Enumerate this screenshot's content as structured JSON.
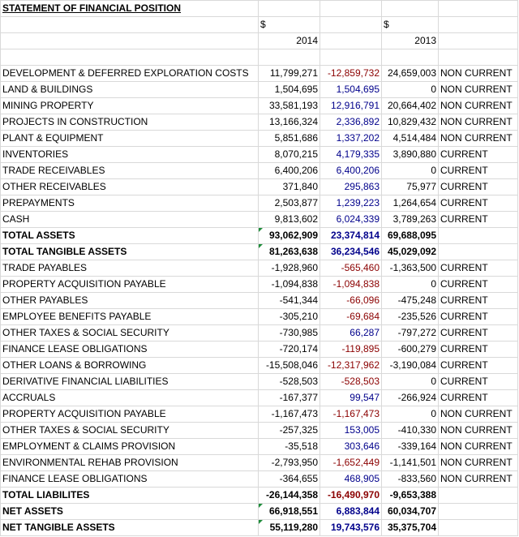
{
  "title": "STATEMENT OF FINANCIAL POSITION",
  "currency_2014": "$",
  "currency_2013": "$",
  "year_2014": "2014",
  "year_2013": "2013",
  "rows": [
    {
      "label": "DEVELOPMENT & DEFERRED EXPLORATION COSTS",
      "v2014": "11,799,271",
      "diff": "-12,859,732",
      "v2013": "24,659,003",
      "cls": "NON CURRENT",
      "diff_tone": "neg",
      "bold": false,
      "flag": false
    },
    {
      "label": "LAND & BUILDINGS",
      "v2014": "1,504,695",
      "diff": "1,504,695",
      "v2013": "0",
      "cls": "NON CURRENT",
      "diff_tone": "pos",
      "bold": false,
      "flag": false
    },
    {
      "label": "MINING PROPERTY",
      "v2014": "33,581,193",
      "diff": "12,916,791",
      "v2013": "20,664,402",
      "cls": "NON CURRENT",
      "diff_tone": "pos",
      "bold": false,
      "flag": false
    },
    {
      "label": "PROJECTS IN CONSTRUCTION",
      "v2014": "13,166,324",
      "diff": "2,336,892",
      "v2013": "10,829,432",
      "cls": "NON CURRENT",
      "diff_tone": "pos",
      "bold": false,
      "flag": false
    },
    {
      "label": "PLANT & EQUIPMENT",
      "v2014": "5,851,686",
      "diff": "1,337,202",
      "v2013": "4,514,484",
      "cls": "NON CURRENT",
      "diff_tone": "pos",
      "bold": false,
      "flag": false
    },
    {
      "label": "INVENTORIES",
      "v2014": "8,070,215",
      "diff": "4,179,335",
      "v2013": "3,890,880",
      "cls": "CURRENT",
      "diff_tone": "pos",
      "bold": false,
      "flag": false
    },
    {
      "label": "TRADE RECEIVABLES",
      "v2014": "6,400,206",
      "diff": "6,400,206",
      "v2013": "0",
      "cls": "CURRENT",
      "diff_tone": "pos",
      "bold": false,
      "flag": false
    },
    {
      "label": "OTHER RECEIVABLES",
      "v2014": "371,840",
      "diff": "295,863",
      "v2013": "75,977",
      "cls": "CURRENT",
      "diff_tone": "pos",
      "bold": false,
      "flag": false
    },
    {
      "label": "PREPAYMENTS",
      "v2014": "2,503,877",
      "diff": "1,239,223",
      "v2013": "1,264,654",
      "cls": "CURRENT",
      "diff_tone": "pos",
      "bold": false,
      "flag": false
    },
    {
      "label": "CASH",
      "v2014": "9,813,602",
      "diff": "6,024,339",
      "v2013": "3,789,263",
      "cls": "CURRENT",
      "diff_tone": "pos",
      "bold": false,
      "flag": false
    },
    {
      "label": "TOTAL ASSETS",
      "v2014": "93,062,909",
      "diff": "23,374,814",
      "v2013": "69,688,095",
      "cls": "",
      "diff_tone": "pos",
      "bold": true,
      "flag": true
    },
    {
      "label": "TOTAL TANGIBLE ASSETS",
      "v2014": "81,263,638",
      "diff": "36,234,546",
      "v2013": "45,029,092",
      "cls": "",
      "diff_tone": "pos",
      "bold": true,
      "flag": true
    },
    {
      "label": "TRADE PAYABLES",
      "v2014": "-1,928,960",
      "diff": "-565,460",
      "v2013": "-1,363,500",
      "cls": "CURRENT",
      "diff_tone": "neg",
      "bold": false,
      "flag": false
    },
    {
      "label": "PROPERTY ACQUISITION PAYABLE",
      "v2014": "-1,094,838",
      "diff": "-1,094,838",
      "v2013": "0",
      "cls": "CURRENT",
      "diff_tone": "neg",
      "bold": false,
      "flag": false
    },
    {
      "label": "OTHER PAYABLES",
      "v2014": "-541,344",
      "diff": "-66,096",
      "v2013": "-475,248",
      "cls": "CURRENT",
      "diff_tone": "neg",
      "bold": false,
      "flag": false
    },
    {
      "label": "EMPLOYEE BENEFITS PAYABLE",
      "v2014": "-305,210",
      "diff": "-69,684",
      "v2013": "-235,526",
      "cls": "CURRENT",
      "diff_tone": "neg",
      "bold": false,
      "flag": false
    },
    {
      "label": "OTHER TAXES & SOCIAL SECURITY",
      "v2014": "-730,985",
      "diff": "66,287",
      "v2013": "-797,272",
      "cls": "CURRENT",
      "diff_tone": "pos",
      "bold": false,
      "flag": false
    },
    {
      "label": "FINANCE LEASE OBLIGATIONS",
      "v2014": "-720,174",
      "diff": "-119,895",
      "v2013": "-600,279",
      "cls": "CURRENT",
      "diff_tone": "neg",
      "bold": false,
      "flag": false
    },
    {
      "label": "OTHER LOANS & BORROWING",
      "v2014": "-15,508,046",
      "diff": "-12,317,962",
      "v2013": "-3,190,084",
      "cls": "CURRENT",
      "diff_tone": "neg",
      "bold": false,
      "flag": false
    },
    {
      "label": "DERIVATIVE FINANCIAL LIABILITIES",
      "v2014": "-528,503",
      "diff": "-528,503",
      "v2013": "0",
      "cls": "CURRENT",
      "diff_tone": "neg",
      "bold": false,
      "flag": false
    },
    {
      "label": "ACCRUALS",
      "v2014": "-167,377",
      "diff": "99,547",
      "v2013": "-266,924",
      "cls": "CURRENT",
      "diff_tone": "pos",
      "bold": false,
      "flag": false
    },
    {
      "label": "PROPERTY ACQUISITION PAYABLE",
      "v2014": "-1,167,473",
      "diff": "-1,167,473",
      "v2013": "0",
      "cls": "NON CURRENT",
      "diff_tone": "neg",
      "bold": false,
      "flag": false
    },
    {
      "label": "OTHER TAXES & SOCIAL SECURITY",
      "v2014": "-257,325",
      "diff": "153,005",
      "v2013": "-410,330",
      "cls": "NON CURRENT",
      "diff_tone": "pos",
      "bold": false,
      "flag": false
    },
    {
      "label": "EMPLOYMENT & CLAIMS PROVISION",
      "v2014": "-35,518",
      "diff": "303,646",
      "v2013": "-339,164",
      "cls": "NON CURRENT",
      "diff_tone": "pos",
      "bold": false,
      "flag": false
    },
    {
      "label": "ENVIRONMENTAL REHAB PROVISION",
      "v2014": "-2,793,950",
      "diff": "-1,652,449",
      "v2013": "-1,141,501",
      "cls": "NON CURRENT",
      "diff_tone": "neg",
      "bold": false,
      "flag": false
    },
    {
      "label": "FINANCE LEASE OBLIGATIONS",
      "v2014": "-364,655",
      "diff": "468,905",
      "v2013": "-833,560",
      "cls": "NON CURRENT",
      "diff_tone": "pos",
      "bold": false,
      "flag": false
    },
    {
      "label": "TOTAL LIABILITES",
      "v2014": "-26,144,358",
      "diff": "-16,490,970",
      "v2013": "-9,653,388",
      "cls": "",
      "diff_tone": "neg",
      "bold": true,
      "flag": false
    },
    {
      "label": "NET ASSETS",
      "v2014": "66,918,551",
      "diff": "6,883,844",
      "v2013": "60,034,707",
      "cls": "",
      "diff_tone": "pos",
      "bold": true,
      "flag": true
    },
    {
      "label": "NET TANGIBLE ASSETS",
      "v2014": "55,119,280",
      "diff": "19,743,576",
      "v2013": "35,375,704",
      "cls": "",
      "diff_tone": "pos",
      "bold": true,
      "flag": true
    }
  ]
}
